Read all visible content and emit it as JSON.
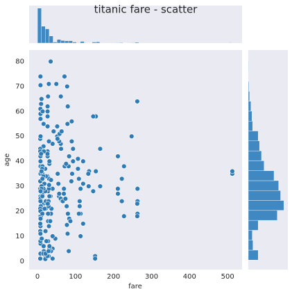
{
  "chart_data": [
    {
      "type": "scatter",
      "title": "titanic fare - scatter",
      "x_label": "fare",
      "y_label": "age",
      "x": [
        7.25,
        71.28,
        7.93,
        53.1,
        8.05,
        51.86,
        21.08,
        11.13,
        30.07,
        16.7,
        26.55,
        8.05,
        31.28,
        7.85,
        16,
        29.13,
        13,
        18,
        7.23,
        26,
        13,
        8.03,
        35.5,
        263,
        7.88,
        27.72,
        146.52,
        7.75,
        21,
        7.05,
        31.39,
        13,
        7.8,
        9.22,
        8.05,
        21.68,
        7.25,
        263,
        10.5,
        7.9,
        27.72,
        39.69,
        7.8,
        76.73,
        61.98,
        35.5,
        7.05,
        80,
        83.48,
        56.5,
        7.79,
        27.9,
        36.75,
        34.38,
        7.25,
        61.17,
        20.57,
        263,
        10.5,
        29,
        39.69,
        27.72,
        7.65,
        30.5,
        33.5,
        15.5,
        65,
        30,
        7.23,
        15.85,
        31.39,
        7.9,
        29.7,
        11.24,
        22.03,
        15.5,
        8.05,
        13,
        13,
        20.21,
        20.52,
        12.47,
        13,
        61.18,
        77.29,
        8.66,
        9.59,
        8.05,
        7.25,
        7.9,
        15.85,
        22.03,
        26,
        35.5,
        26.55,
        21,
        29,
        7.25,
        221.78,
        7.75,
        39.69,
        10.46,
        7.75,
        27,
        27.72,
        153.46,
        12.35,
        7.9,
        82.17,
        8.05,
        13,
        26.55,
        8.05,
        12.87,
        10.5,
        18.79,
        227.52,
        7.9,
        51.86,
        30.5,
        7.75,
        113.28,
        79.2,
        26.55,
        135.63,
        134.5,
        120,
        110.88,
        106.43,
        211.5,
        211.34,
        211.34,
        221.78,
        247.52,
        262.38,
        262.38,
        262.38,
        512.33,
        512.33,
        151.55,
        151.55,
        164.87,
        146.52,
        133.65,
        113.28,
        120,
        90,
        78.85,
        79.65,
        71,
        7.78,
        34.65,
        49.5,
        77.96,
        61.38,
        7.75,
        9.5,
        13.5,
        26.55,
        26.55,
        30,
        90,
        93.5,
        89.1,
        81.86,
        66.6,
        69.3,
        106.43,
        108.9,
        120,
        113.28,
        108.9,
        7.23,
        15.25,
        31.27,
        39.69,
        46.9,
        31.39,
        27.9,
        21.08,
        29.12,
        7.23,
        23.45,
        39.69,
        11.13,
        7.75,
        16.1,
        7.25,
        26.29,
        56.93,
        52.55,
        42.4,
        57.98,
        75.25,
        55,
        57,
        73.5,
        69.55,
        63.36,
        83.16,
        93.5,
        110.88,
        86.5,
        91.08,
        153.46,
        164.87,
        227.52,
        211.5,
        16.7,
        9.48
      ],
      "y": [
        22,
        38,
        26,
        35,
        35,
        54,
        2,
        27,
        14,
        4,
        58,
        20,
        39,
        14,
        55,
        2,
        35,
        31,
        15,
        34,
        28,
        38,
        19,
        19,
        40,
        66,
        28,
        42,
        21,
        18,
        40,
        27,
        3,
        18,
        7,
        21,
        49,
        29,
        65,
        21,
        28.5,
        5,
        11,
        22,
        45,
        4,
        29,
        19,
        17,
        26,
        32,
        16,
        21,
        26,
        32,
        25,
        0.83,
        24,
        30,
        22,
        29,
        28,
        17,
        33,
        16,
        23,
        24,
        29,
        20,
        46,
        26,
        59,
        71,
        23,
        34,
        34,
        28,
        21,
        33,
        37,
        28,
        21,
        38,
        47,
        14.5,
        22,
        20,
        17,
        21,
        70.5,
        29,
        24,
        2,
        32.5,
        54,
        12,
        24,
        45,
        33,
        20,
        47,
        29,
        25,
        23,
        19,
        58,
        37,
        24,
        4,
        28,
        26,
        44,
        50,
        19,
        36,
        21,
        18,
        57,
        50,
        30.5,
        8,
        19,
        11,
        42,
        36,
        30,
        15,
        24,
        41,
        42,
        29,
        27,
        24,
        50,
        64,
        23,
        18,
        35,
        36,
        2,
        1,
        45,
        58,
        35,
        10,
        31,
        56,
        55,
        62,
        74,
        74,
        80,
        71,
        70,
        66,
        61,
        63,
        60,
        62,
        60,
        48,
        48,
        40,
        32,
        38,
        24,
        27,
        37,
        33,
        40,
        29,
        19,
        1,
        3,
        5,
        1,
        9,
        6,
        8,
        3,
        4,
        12,
        8,
        10,
        9,
        11,
        6,
        44,
        43,
        48,
        49,
        52,
        51,
        39,
        31,
        27,
        25,
        29,
        52,
        42,
        45,
        22,
        16,
        35,
        36,
        30,
        38,
        27,
        44,
        43
      ],
      "color": "#2f7bb6",
      "xlim": [
        -22,
        538
      ],
      "ylim": [
        -3.4,
        84.6
      ],
      "xticks": [
        0,
        100,
        200,
        300,
        400,
        500
      ],
      "yticks": [
        0,
        10,
        20,
        30,
        40,
        50,
        60,
        70,
        80
      ],
      "grid": false
    },
    {
      "type": "histogram",
      "orientation": "vertical",
      "color": "#3f88c2",
      "bins": [
        0,
        10.25,
        20.49,
        30.74,
        40.99,
        51.23,
        61.48,
        71.73,
        81.97,
        92.22,
        102.47,
        112.71,
        122.96,
        133.21,
        143.45,
        153.7,
        163.95,
        174.19,
        184.44,
        194.69,
        204.93,
        215.18,
        225.43,
        235.67,
        245.92,
        256.17,
        266.41,
        276.66,
        286.91,
        297.15,
        307.4,
        317.65,
        327.89,
        338.14,
        348.39,
        358.63,
        368.88,
        379.13,
        389.37,
        399.62,
        409.87,
        420.11,
        430.36,
        440.61,
        450.85,
        461.1,
        471.35,
        481.59,
        491.84,
        502.09,
        512.33
      ],
      "values": [
        270,
        130,
        110,
        55,
        8,
        28,
        20,
        18,
        18,
        8,
        3,
        13,
        0,
        2,
        8,
        10,
        0,
        0,
        0,
        0,
        3,
        4,
        2,
        0,
        3,
        6,
        0,
        0,
        0,
        0,
        0,
        0,
        0,
        0,
        0,
        0,
        0,
        0,
        0,
        0,
        0,
        0,
        0,
        0,
        0,
        0,
        0,
        0,
        0,
        3
      ],
      "ylim": [
        0,
        290
      ]
    },
    {
      "type": "histogram",
      "orientation": "horizontal",
      "color": "#3f88c2",
      "bins": [
        0.42,
        4.4,
        8.38,
        12.36,
        16.34,
        20.32,
        24.3,
        28.27,
        32.25,
        36.23,
        40.21,
        44.19,
        48.17,
        52.15,
        56.13,
        60.11,
        64.09,
        68.07,
        72.05,
        76.02,
        80
      ],
      "values": [
        30,
        14,
        12,
        30,
        88,
        108,
        98,
        92,
        78,
        48,
        40,
        34,
        30,
        13,
        11,
        8,
        4,
        2,
        0,
        1
      ],
      "xlim": [
        0,
        120
      ]
    }
  ]
}
